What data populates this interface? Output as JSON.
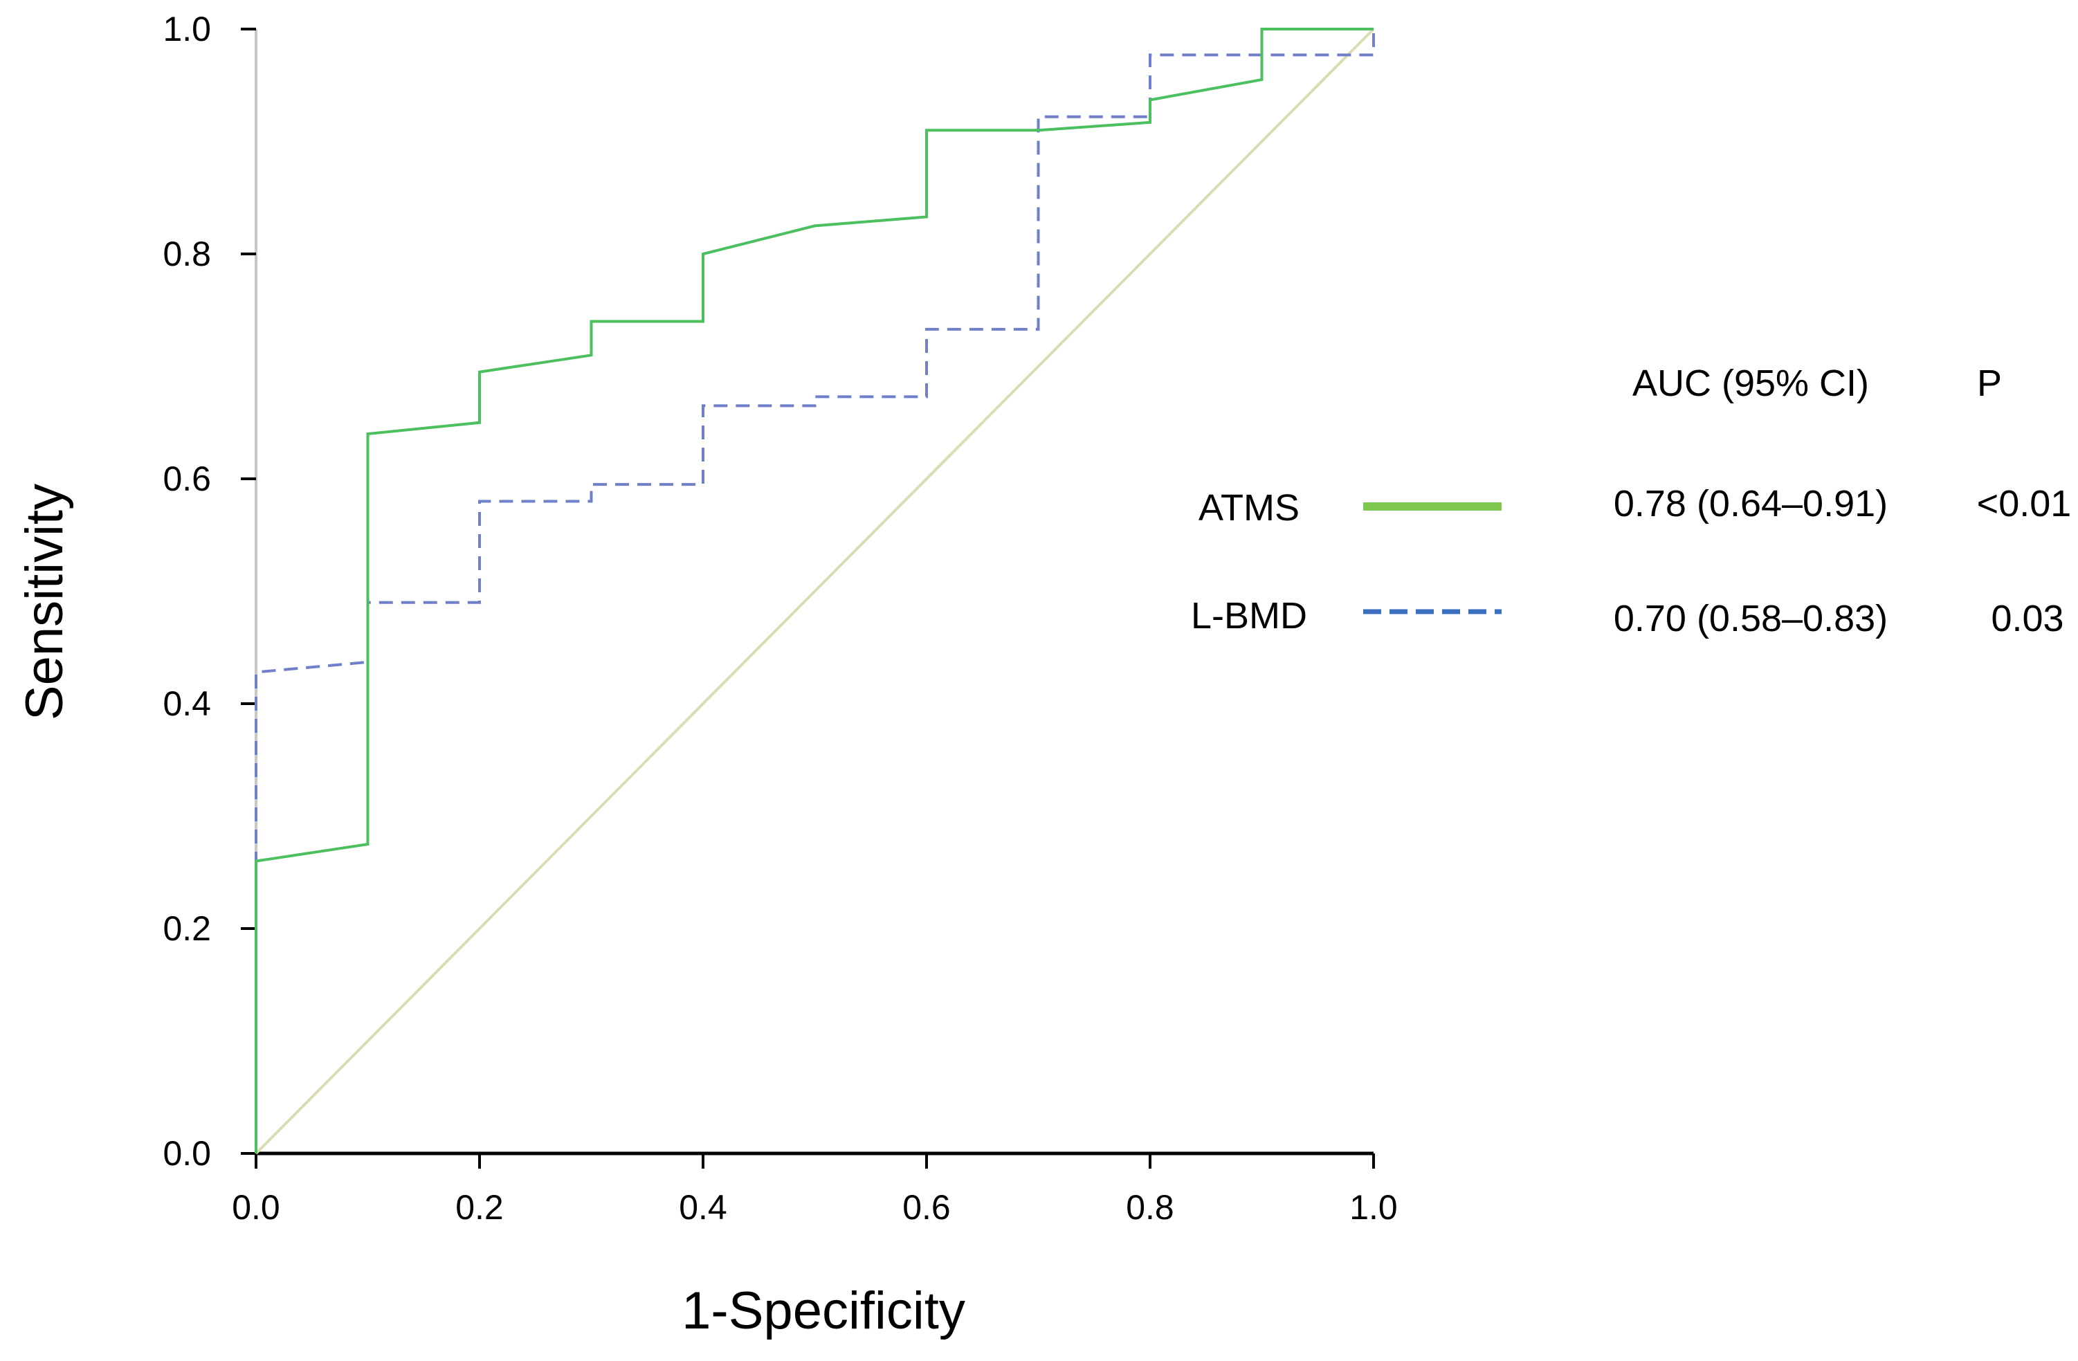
{
  "chart_data": {
    "type": "line",
    "title": "",
    "xlabel": "1-Specificity",
    "ylabel": "Sensitivity",
    "xlim": [
      0,
      1
    ],
    "ylim": [
      0,
      1
    ],
    "grid": false,
    "x_ticks": [
      "0.0",
      "0.2",
      "0.4",
      "0.6",
      "0.8",
      "1.0"
    ],
    "y_ticks": [
      "0.0",
      "0.2",
      "0.4",
      "0.6",
      "0.8",
      "1.0"
    ],
    "legend_position": "right",
    "legend": {
      "header_auc": "AUC (95% CI)",
      "header_p": "P",
      "entries": [
        {
          "name": "ATMS",
          "auc": "0.78 (0.64–0.91)",
          "p": "<0.01",
          "color": "#7ec850",
          "style": "solid"
        },
        {
          "name": "L-BMD",
          "auc": "0.70 (0.58–0.83)",
          "p": "0.03",
          "color": "#3a6fc0",
          "style": "dashed"
        }
      ]
    },
    "reference_line": {
      "name": "reference-diagonal",
      "points": [
        [
          0,
          0
        ],
        [
          1,
          1
        ]
      ],
      "color": "#dcdcb4"
    },
    "series": [
      {
        "name": "ATMS",
        "color": "#4cbf5e",
        "style": "solid",
        "points": [
          [
            0,
            0
          ],
          [
            0,
            0.26
          ],
          [
            0.1,
            0.275
          ],
          [
            0.1,
            0.64
          ],
          [
            0.2,
            0.65
          ],
          [
            0.2,
            0.695
          ],
          [
            0.3,
            0.71
          ],
          [
            0.3,
            0.74
          ],
          [
            0.4,
            0.74
          ],
          [
            0.4,
            0.8
          ],
          [
            0.5,
            0.825
          ],
          [
            0.6,
            0.833
          ],
          [
            0.6,
            0.91
          ],
          [
            0.7,
            0.91
          ],
          [
            0.8,
            0.917
          ],
          [
            0.8,
            0.937
          ],
          [
            0.9,
            0.955
          ],
          [
            0.9,
            1.0
          ],
          [
            1.0,
            1.0
          ]
        ]
      },
      {
        "name": "L-BMD",
        "color": "#6f7fc9",
        "style": "dashed",
        "points": [
          [
            0,
            0
          ],
          [
            0,
            0.428
          ],
          [
            0.1,
            0.437
          ],
          [
            0.1,
            0.49
          ],
          [
            0.2,
            0.49
          ],
          [
            0.2,
            0.58
          ],
          [
            0.3,
            0.58
          ],
          [
            0.3,
            0.595
          ],
          [
            0.4,
            0.595
          ],
          [
            0.4,
            0.665
          ],
          [
            0.5,
            0.665
          ],
          [
            0.5,
            0.673
          ],
          [
            0.6,
            0.673
          ],
          [
            0.6,
            0.733
          ],
          [
            0.7,
            0.733
          ],
          [
            0.7,
            0.922
          ],
          [
            0.8,
            0.922
          ],
          [
            0.8,
            0.977
          ],
          [
            1.0,
            0.977
          ],
          [
            1.0,
            1.0
          ]
        ]
      }
    ]
  }
}
